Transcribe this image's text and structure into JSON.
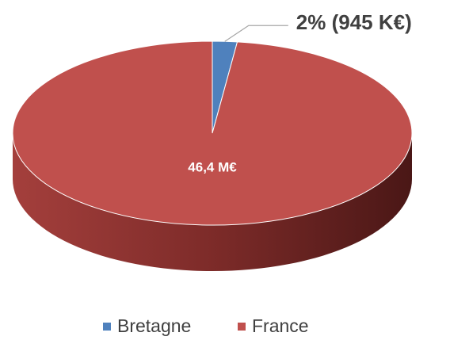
{
  "chart_data": {
    "type": "pie3d",
    "categories": [
      "Bretagne",
      "France"
    ],
    "values": [
      945000,
      46400000
    ],
    "value_labels": [
      "2% (945 K€)",
      "46,4 M€"
    ],
    "colors": [
      "#4f81bd",
      "#c0504d"
    ],
    "legend": "bottom"
  }
}
